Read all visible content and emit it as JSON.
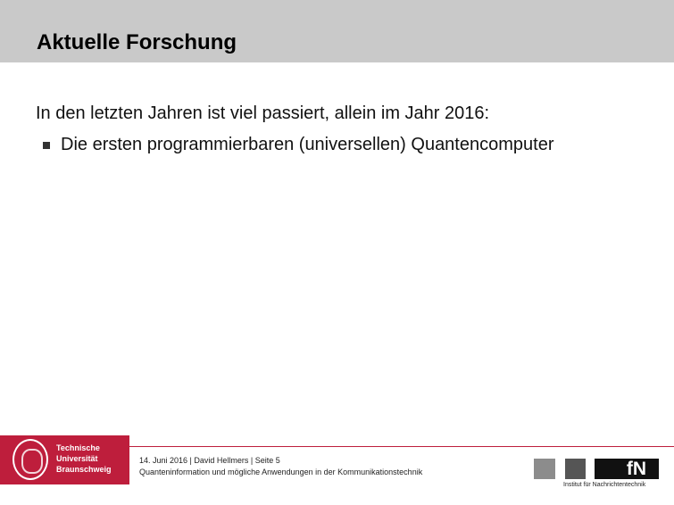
{
  "slide": {
    "title": "Aktuelle Forschung",
    "intro": "In den letzten Jahren ist viel passiert, allein im Jahr 2016:",
    "bullets": [
      "Die ersten programmierbaren (universellen) Quantencomputer"
    ]
  },
  "footer": {
    "university_logo_text": [
      "Technische",
      "Universität",
      "Braunschweig"
    ],
    "meta_line": "14. Juni 2016 | David Hellmers | Seite 5",
    "subtitle_line": "Quanteninformation und mögliche Anwendungen in der Kommunikationstechnik",
    "institute_logo_text": "fN",
    "institute_name": "Institut für Nachrichtentechnik"
  },
  "colors": {
    "header": "#c9c9c9",
    "brand_red": "#be1e3c"
  }
}
